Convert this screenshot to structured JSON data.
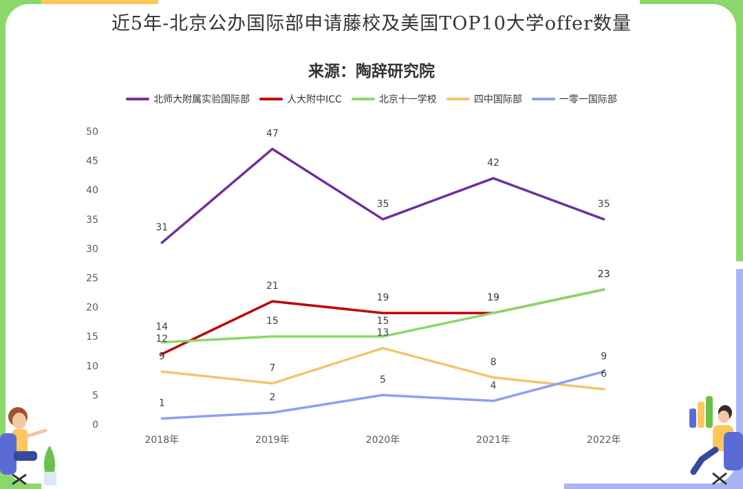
{
  "title": "近5年-北京公办国际部申请藤校及美国TOP10大学offer数量",
  "subtitle": "来源：陶辞研究院",
  "theme": {
    "bg_green": "#8ad86a",
    "bg_orange": "#ffc65a",
    "bg_blue": "#a9b4f2"
  },
  "chart_data": {
    "type": "line",
    "categories": [
      "2018年",
      "2019年",
      "2020年",
      "2021年",
      "2022年"
    ],
    "ylim": [
      0,
      50
    ],
    "yticks": [
      "0",
      "5",
      "10",
      "15",
      "20",
      "25",
      "30",
      "35",
      "40",
      "45",
      "50"
    ],
    "legend_position": "top",
    "grid": false,
    "series": [
      {
        "name": "北师大附属实验国际部",
        "color": "#7030a0",
        "values": [
          31,
          47,
          35,
          42,
          35
        ]
      },
      {
        "name": "人大附中ICC",
        "color": "#c00000",
        "values": [
          12,
          21,
          19,
          19,
          23
        ]
      },
      {
        "name": "北京十一学校",
        "color": "#8ad86a",
        "values": [
          14,
          15,
          15,
          19,
          23
        ]
      },
      {
        "name": "四中国际部",
        "color": "#f4c46a",
        "values": [
          9,
          7,
          13,
          8,
          6
        ]
      },
      {
        "name": "一零一国际部",
        "color": "#8f9ef2",
        "values": [
          1,
          2,
          5,
          4,
          9
        ]
      }
    ]
  }
}
